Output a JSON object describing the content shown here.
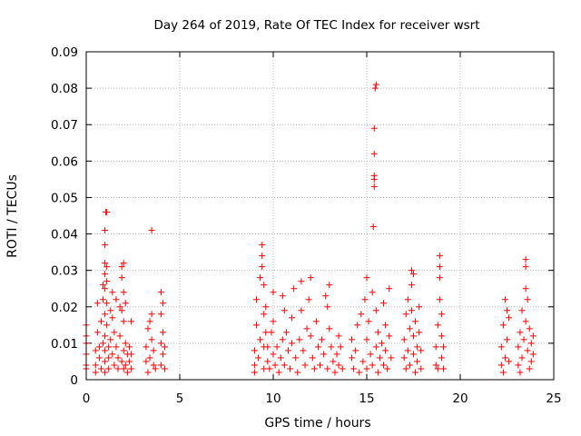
{
  "chart_data": {
    "type": "scatter",
    "title": "Day 264 of 2019, Rate Of TEC Index for receiver wsrt",
    "xlabel": "GPS time / hours",
    "ylabel": "ROTI / TECUs",
    "xlim": [
      0,
      25
    ],
    "ylim": [
      0,
      0.09
    ],
    "xticks": [
      0,
      5,
      10,
      15,
      20,
      25
    ],
    "xtick_labels": [
      "0",
      "5",
      "10",
      "15",
      "20",
      "25"
    ],
    "yticks": [
      0,
      0.01,
      0.02,
      0.03,
      0.04,
      0.05,
      0.06,
      0.07,
      0.08,
      0.09
    ],
    "ytick_labels": [
      "0",
      "0.01",
      "0.02",
      "0.03",
      "0.04",
      "0.05",
      "0.06",
      "0.07",
      "0.08",
      "0.09"
    ],
    "grid": true,
    "marker": "+",
    "color": "#ff0000",
    "series": [
      {
        "name": "ROTI",
        "points": [
          [
            0.0,
            0.004
          ],
          [
            0.0,
            0.012
          ],
          [
            0.0,
            0.015
          ],
          [
            0.0,
            0.007
          ],
          [
            0.0,
            0.01
          ],
          [
            0.0,
            0.003
          ],
          [
            0.5,
            0.004
          ],
          [
            0.5,
            0.008
          ],
          [
            0.5,
            0.002
          ],
          [
            0.6,
            0.013
          ],
          [
            0.6,
            0.021
          ],
          [
            0.7,
            0.006
          ],
          [
            0.7,
            0.009
          ],
          [
            0.8,
            0.003
          ],
          [
            0.8,
            0.016
          ],
          [
            0.9,
            0.01
          ],
          [
            0.9,
            0.022
          ],
          [
            0.9,
            0.026
          ],
          [
            1.0,
            0.041
          ],
          [
            1.0,
            0.037
          ],
          [
            1.0,
            0.032
          ],
          [
            1.0,
            0.029
          ],
          [
            1.0,
            0.025
          ],
          [
            1.0,
            0.018
          ],
          [
            1.0,
            0.012
          ],
          [
            1.0,
            0.008
          ],
          [
            1.0,
            0.005
          ],
          [
            1.0,
            0.002
          ],
          [
            1.05,
            0.046
          ],
          [
            1.1,
            0.046
          ],
          [
            1.1,
            0.031
          ],
          [
            1.1,
            0.027
          ],
          [
            1.1,
            0.021
          ],
          [
            1.1,
            0.015
          ],
          [
            1.2,
            0.009
          ],
          [
            1.2,
            0.006
          ],
          [
            1.2,
            0.003
          ],
          [
            1.3,
            0.019
          ],
          [
            1.3,
            0.011
          ],
          [
            1.4,
            0.024
          ],
          [
            1.4,
            0.017
          ],
          [
            1.4,
            0.007
          ],
          [
            1.5,
            0.004
          ],
          [
            1.5,
            0.013
          ],
          [
            1.6,
            0.022
          ],
          [
            1.6,
            0.009
          ],
          [
            1.7,
            0.003
          ],
          [
            1.7,
            0.006
          ],
          [
            1.8,
            0.02
          ],
          [
            1.8,
            0.012
          ],
          [
            1.9,
            0.031
          ],
          [
            1.9,
            0.028
          ],
          [
            1.9,
            0.019
          ],
          [
            1.9,
            0.005
          ],
          [
            2.0,
            0.032
          ],
          [
            2.0,
            0.024
          ],
          [
            2.0,
            0.016
          ],
          [
            2.0,
            0.008
          ],
          [
            2.0,
            0.003
          ],
          [
            2.1,
            0.021
          ],
          [
            2.1,
            0.01
          ],
          [
            2.1,
            0.004
          ],
          [
            2.2,
            0.007
          ],
          [
            2.2,
            0.002
          ],
          [
            2.3,
            0.005
          ],
          [
            2.3,
            0.009
          ],
          [
            2.4,
            0.003
          ],
          [
            2.4,
            0.016
          ],
          [
            2.4,
            0.007
          ],
          [
            3.2,
            0.005
          ],
          [
            3.2,
            0.009
          ],
          [
            3.3,
            0.002
          ],
          [
            3.3,
            0.014
          ],
          [
            3.4,
            0.016
          ],
          [
            3.4,
            0.006
          ],
          [
            3.5,
            0.041
          ],
          [
            3.5,
            0.018
          ],
          [
            3.5,
            0.011
          ],
          [
            3.6,
            0.004
          ],
          [
            3.6,
            0.008
          ],
          [
            3.7,
            0.003
          ],
          [
            4.0,
            0.024
          ],
          [
            4.0,
            0.018
          ],
          [
            4.0,
            0.01
          ],
          [
            4.0,
            0.004
          ],
          [
            4.1,
            0.021
          ],
          [
            4.1,
            0.013
          ],
          [
            4.1,
            0.007
          ],
          [
            4.2,
            0.003
          ],
          [
            4.2,
            0.009
          ],
          [
            9.0,
            0.004
          ],
          [
            9.0,
            0.008
          ],
          [
            9.0,
            0.002
          ],
          [
            9.1,
            0.015
          ],
          [
            9.1,
            0.022
          ],
          [
            9.2,
            0.006
          ],
          [
            9.3,
            0.011
          ],
          [
            9.3,
            0.028
          ],
          [
            9.4,
            0.037
          ],
          [
            9.4,
            0.034
          ],
          [
            9.4,
            0.031
          ],
          [
            9.5,
            0.026
          ],
          [
            9.5,
            0.018
          ],
          [
            9.5,
            0.009
          ],
          [
            9.5,
            0.003
          ],
          [
            9.6,
            0.02
          ],
          [
            9.6,
            0.013
          ],
          [
            9.7,
            0.005
          ],
          [
            9.7,
            0.009
          ],
          [
            9.8,
            0.003
          ],
          [
            9.9,
            0.013
          ],
          [
            10.0,
            0.024
          ],
          [
            10.0,
            0.016
          ],
          [
            10.0,
            0.007
          ],
          [
            10.1,
            0.004
          ],
          [
            10.2,
            0.009
          ],
          [
            10.3,
            0.002
          ],
          [
            10.4,
            0.006
          ],
          [
            10.5,
            0.023
          ],
          [
            10.5,
            0.011
          ],
          [
            10.6,
            0.019
          ],
          [
            10.6,
            0.004
          ],
          [
            10.7,
            0.013
          ],
          [
            10.8,
            0.008
          ],
          [
            10.9,
            0.003
          ],
          [
            11.0,
            0.017
          ],
          [
            11.0,
            0.01
          ],
          [
            11.1,
            0.025
          ],
          [
            11.2,
            0.006
          ],
          [
            11.3,
            0.002
          ],
          [
            11.4,
            0.011
          ],
          [
            11.5,
            0.027
          ],
          [
            11.5,
            0.019
          ],
          [
            11.6,
            0.008
          ],
          [
            11.7,
            0.004
          ],
          [
            11.8,
            0.014
          ],
          [
            11.9,
            0.022
          ],
          [
            12.0,
            0.028
          ],
          [
            12.0,
            0.012
          ],
          [
            12.1,
            0.006
          ],
          [
            12.2,
            0.003
          ],
          [
            12.3,
            0.016
          ],
          [
            12.4,
            0.009
          ],
          [
            12.5,
            0.004
          ],
          [
            12.6,
            0.011
          ],
          [
            12.7,
            0.007
          ],
          [
            12.8,
            0.023
          ],
          [
            12.9,
            0.02
          ],
          [
            12.9,
            0.003
          ],
          [
            13.0,
            0.026
          ],
          [
            13.0,
            0.014
          ],
          [
            13.1,
            0.009
          ],
          [
            13.2,
            0.005
          ],
          [
            13.3,
            0.002
          ],
          [
            13.4,
            0.007
          ],
          [
            13.5,
            0.012
          ],
          [
            13.5,
            0.004
          ],
          [
            13.6,
            0.009
          ],
          [
            13.7,
            0.003
          ],
          [
            14.2,
            0.006
          ],
          [
            14.2,
            0.011
          ],
          [
            14.3,
            0.003
          ],
          [
            14.4,
            0.008
          ],
          [
            14.5,
            0.015
          ],
          [
            14.6,
            0.002
          ],
          [
            14.7,
            0.018
          ],
          [
            14.8,
            0.005
          ],
          [
            14.9,
            0.022
          ],
          [
            15.0,
            0.028
          ],
          [
            15.0,
            0.011
          ],
          [
            15.0,
            0.003
          ],
          [
            15.1,
            0.016
          ],
          [
            15.2,
            0.007
          ],
          [
            15.3,
            0.024
          ],
          [
            15.3,
            0.004
          ],
          [
            15.35,
            0.042
          ],
          [
            15.4,
            0.053
          ],
          [
            15.4,
            0.055
          ],
          [
            15.4,
            0.056
          ],
          [
            15.4,
            0.062
          ],
          [
            15.4,
            0.069
          ],
          [
            15.45,
            0.08
          ],
          [
            15.5,
            0.081
          ],
          [
            15.5,
            0.019
          ],
          [
            15.5,
            0.009
          ],
          [
            15.6,
            0.013
          ],
          [
            15.6,
            0.002
          ],
          [
            15.7,
            0.006
          ],
          [
            15.8,
            0.01
          ],
          [
            15.9,
            0.021
          ],
          [
            15.9,
            0.004
          ],
          [
            16.0,
            0.015
          ],
          [
            16.0,
            0.008
          ],
          [
            16.1,
            0.003
          ],
          [
            16.2,
            0.025
          ],
          [
            16.2,
            0.012
          ],
          [
            16.3,
            0.006
          ],
          [
            17.0,
            0.006
          ],
          [
            17.0,
            0.011
          ],
          [
            17.1,
            0.003
          ],
          [
            17.1,
            0.018
          ],
          [
            17.2,
            0.022
          ],
          [
            17.2,
            0.008
          ],
          [
            17.3,
            0.014
          ],
          [
            17.3,
            0.004
          ],
          [
            17.4,
            0.03
          ],
          [
            17.4,
            0.026
          ],
          [
            17.4,
            0.019
          ],
          [
            17.5,
            0.029
          ],
          [
            17.5,
            0.012
          ],
          [
            17.5,
            0.007
          ],
          [
            17.6,
            0.002
          ],
          [
            17.6,
            0.016
          ],
          [
            17.7,
            0.009
          ],
          [
            17.7,
            0.005
          ],
          [
            17.8,
            0.013
          ],
          [
            17.8,
            0.02
          ],
          [
            17.9,
            0.003
          ],
          [
            17.9,
            0.008
          ],
          [
            18.7,
            0.009
          ],
          [
            18.7,
            0.004
          ],
          [
            18.8,
            0.015
          ],
          [
            18.8,
            0.003
          ],
          [
            18.9,
            0.034
          ],
          [
            18.9,
            0.031
          ],
          [
            18.9,
            0.028
          ],
          [
            18.9,
            0.022
          ],
          [
            19.0,
            0.018
          ],
          [
            19.0,
            0.012
          ],
          [
            19.0,
            0.006
          ],
          [
            19.1,
            0.009
          ],
          [
            19.1,
            0.003
          ],
          [
            22.2,
            0.004
          ],
          [
            22.2,
            0.009
          ],
          [
            22.3,
            0.002
          ],
          [
            22.3,
            0.015
          ],
          [
            22.4,
            0.022
          ],
          [
            22.4,
            0.006
          ],
          [
            22.5,
            0.019
          ],
          [
            22.5,
            0.011
          ],
          [
            22.6,
            0.005
          ],
          [
            22.6,
            0.017
          ],
          [
            23.1,
            0.009
          ],
          [
            23.1,
            0.004
          ],
          [
            23.2,
            0.013
          ],
          [
            23.2,
            0.002
          ],
          [
            23.3,
            0.019
          ],
          [
            23.3,
            0.006
          ],
          [
            23.4,
            0.011
          ],
          [
            23.5,
            0.033
          ],
          [
            23.5,
            0.031
          ],
          [
            23.5,
            0.025
          ],
          [
            23.5,
            0.016
          ],
          [
            23.6,
            0.022
          ],
          [
            23.6,
            0.008
          ],
          [
            23.7,
            0.014
          ],
          [
            23.7,
            0.003
          ],
          [
            23.8,
            0.01
          ],
          [
            23.8,
            0.005
          ],
          [
            23.9,
            0.012
          ],
          [
            23.9,
            0.007
          ]
        ]
      }
    ]
  }
}
